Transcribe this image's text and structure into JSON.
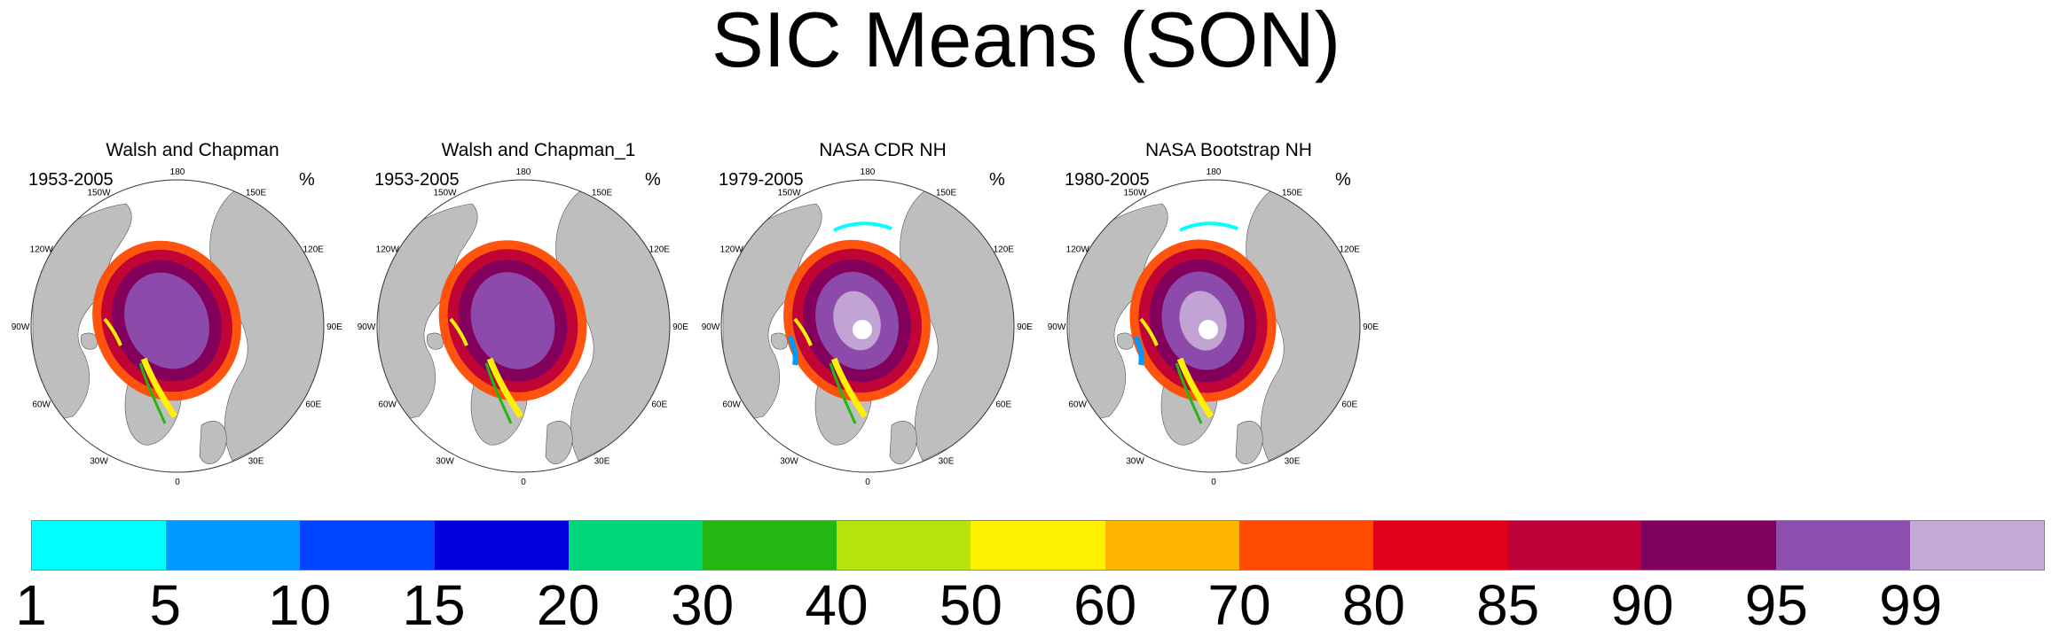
{
  "title": "SIC Means (SON)",
  "panels": [
    {
      "title": "Walsh and Chapman",
      "period": "1953-2005",
      "unit": "%"
    },
    {
      "title": "Walsh and Chapman_1",
      "period": "1953-2005",
      "unit": "%"
    },
    {
      "title": "NASA CDR NH",
      "period": "1979-2005",
      "unit": "%"
    },
    {
      "title": "NASA Bootstrap NH",
      "period": "1980-2005",
      "unit": "%"
    }
  ],
  "longitude_labels": [
    "180",
    "150E",
    "120E",
    "90E",
    "60E",
    "30E",
    "0",
    "30W",
    "60W",
    "90W",
    "120W",
    "150W"
  ],
  "colorbar": {
    "colors": [
      "#00FFFF",
      "#0099FF",
      "#0044FF",
      "#0000DD",
      "#00D87A",
      "#22B811",
      "#B6E40A",
      "#FFF200",
      "#FFB400",
      "#FF4B00",
      "#E3001A",
      "#BD0038",
      "#7E005F",
      "#8C4FAE",
      "#C4A8D6"
    ],
    "labels": [
      "1",
      "5",
      "10",
      "15",
      "20",
      "30",
      "40",
      "50",
      "60",
      "70",
      "80",
      "85",
      "90",
      "95",
      "99"
    ]
  }
}
